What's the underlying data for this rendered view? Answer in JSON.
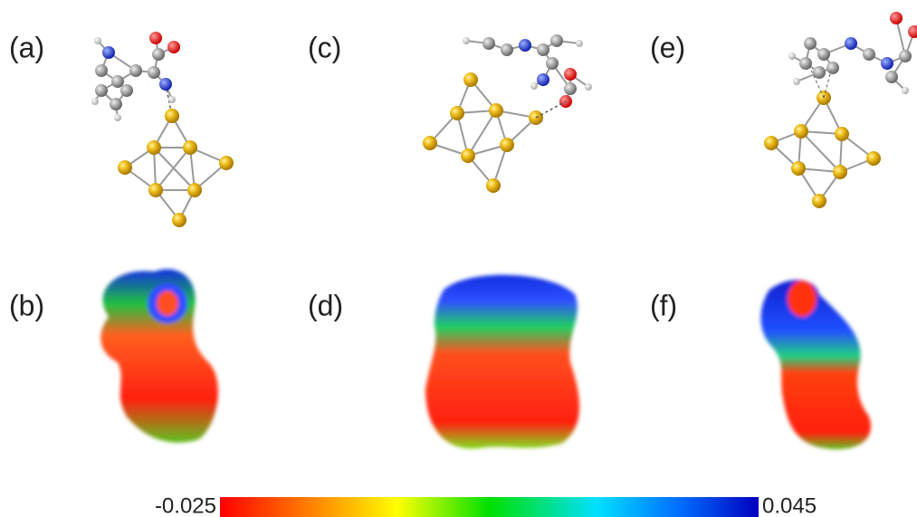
{
  "panels": [
    {
      "label": "(a)"
    },
    {
      "label": "(c)"
    },
    {
      "label": "(e)"
    },
    {
      "label": "(b)"
    },
    {
      "label": "(d)"
    },
    {
      "label": "(f)"
    }
  ],
  "colorbar": {
    "min_label": "-0.025",
    "max_label": "0.045"
  }
}
